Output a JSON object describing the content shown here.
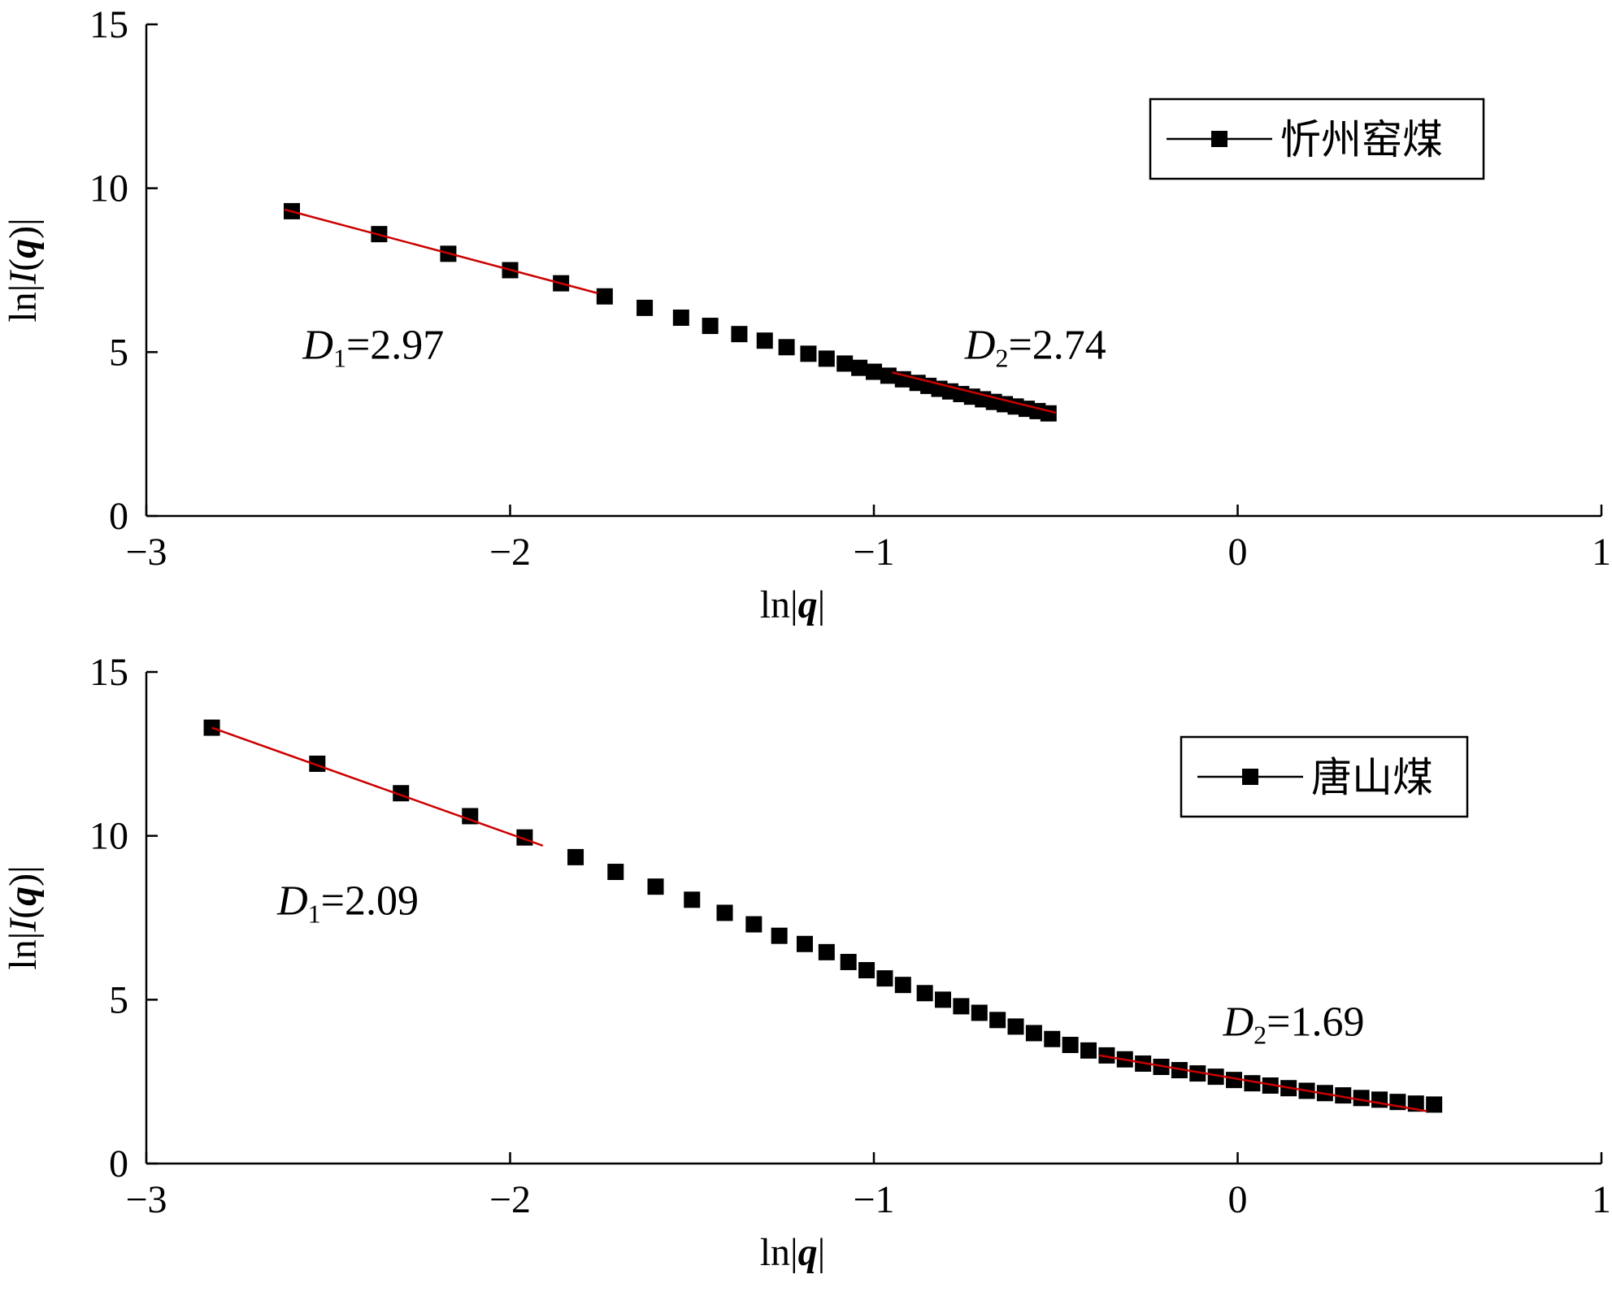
{
  "chart_data": [
    {
      "type": "scatter",
      "xlabel": "ln|q|",
      "ylabel": "ln|I(q)|",
      "xlim": [
        -3,
        1
      ],
      "ylim": [
        0,
        15
      ],
      "xticks": [
        -3,
        -2,
        -1,
        0,
        1
      ],
      "yticks": [
        0,
        5,
        10,
        15
      ],
      "xtick_labels": [
        "−3",
        "−2",
        "−1",
        "0",
        "1"
      ],
      "ytick_labels": [
        "0",
        "5",
        "10",
        "15"
      ],
      "grid": false,
      "legend_position": "top-right",
      "series": [
        {
          "name": "忻州窑煤",
          "marker": "square",
          "color": "#000000",
          "x": [
            -2.6,
            -2.36,
            -2.17,
            -2.0,
            -1.86,
            -1.74,
            -1.63,
            -1.53,
            -1.45,
            -1.37,
            -1.3,
            -1.24,
            -1.18,
            -1.13,
            -1.08,
            -1.04,
            -1.0,
            -0.96,
            -0.92,
            -0.88,
            -0.85,
            -0.82,
            -0.79,
            -0.76,
            -0.73,
            -0.7,
            -0.67,
            -0.64,
            -0.61,
            -0.58,
            -0.55,
            -0.52
          ],
          "y": [
            9.3,
            8.6,
            8.0,
            7.5,
            7.1,
            6.7,
            6.35,
            6.05,
            5.8,
            5.55,
            5.35,
            5.15,
            4.95,
            4.8,
            4.65,
            4.52,
            4.4,
            4.28,
            4.17,
            4.06,
            3.97,
            3.88,
            3.8,
            3.72,
            3.64,
            3.56,
            3.48,
            3.41,
            3.34,
            3.27,
            3.2,
            3.13
          ]
        }
      ],
      "fit_lines": [
        {
          "x": [
            -2.62,
            -1.76
          ],
          "y": [
            9.35,
            6.8
          ],
          "color": "#cc0000"
        },
        {
          "x": [
            -0.95,
            -0.5
          ],
          "y": [
            4.38,
            3.15
          ],
          "color": "#cc0000"
        }
      ],
      "annotations": [
        {
          "symbol": "D",
          "sub": "1",
          "rest": "=2.97",
          "x": -2.57,
          "y": 4.8
        },
        {
          "symbol": "D",
          "sub": "2",
          "rest": "=2.74",
          "x": -0.75,
          "y": 4.8
        }
      ]
    },
    {
      "type": "scatter",
      "xlabel": "ln|q|",
      "ylabel": "ln|I(q)|",
      "xlim": [
        -3,
        1
      ],
      "ylim": [
        0,
        15
      ],
      "xticks": [
        -3,
        -2,
        -1,
        0,
        1
      ],
      "yticks": [
        0,
        5,
        10,
        15
      ],
      "xtick_labels": [
        "−3",
        "−2",
        "−1",
        "0",
        "1"
      ],
      "ytick_labels": [
        "0",
        "5",
        "10",
        "15"
      ],
      "grid": false,
      "legend_position": "top-right",
      "series": [
        {
          "name": "唐山煤",
          "marker": "square",
          "color": "#000000",
          "x": [
            -2.82,
            -2.53,
            -2.3,
            -2.11,
            -1.96,
            -1.82,
            -1.71,
            -1.6,
            -1.5,
            -1.41,
            -1.33,
            -1.26,
            -1.19,
            -1.13,
            -1.07,
            -1.02,
            -0.97,
            -0.92,
            -0.86,
            -0.81,
            -0.76,
            -0.71,
            -0.66,
            -0.61,
            -0.56,
            -0.51,
            -0.46,
            -0.41,
            -0.36,
            -0.31,
            -0.26,
            -0.21,
            -0.16,
            -0.11,
            -0.06,
            -0.01,
            0.04,
            0.09,
            0.14,
            0.19,
            0.24,
            0.29,
            0.34,
            0.39,
            0.44,
            0.49,
            0.54
          ],
          "y": [
            13.3,
            12.2,
            11.3,
            10.6,
            9.95,
            9.35,
            8.9,
            8.45,
            8.05,
            7.65,
            7.3,
            6.95,
            6.7,
            6.45,
            6.15,
            5.9,
            5.65,
            5.45,
            5.2,
            5.0,
            4.8,
            4.6,
            4.38,
            4.18,
            3.98,
            3.8,
            3.62,
            3.45,
            3.3,
            3.18,
            3.05,
            2.95,
            2.85,
            2.75,
            2.65,
            2.55,
            2.45,
            2.38,
            2.3,
            2.22,
            2.15,
            2.08,
            2.0,
            1.95,
            1.88,
            1.83,
            1.8
          ]
        }
      ],
      "fit_lines": [
        {
          "x": [
            -2.82,
            -1.91
          ],
          "y": [
            13.3,
            9.7
          ],
          "color": "#cc0000"
        },
        {
          "x": [
            -0.38,
            0.52
          ],
          "y": [
            3.3,
            1.6
          ],
          "color": "#cc0000"
        }
      ],
      "annotations": [
        {
          "symbol": "D",
          "sub": "1",
          "rest": "=2.09",
          "x": -2.64,
          "y": 7.6
        },
        {
          "symbol": "D",
          "sub": "2",
          "rest": "=1.69",
          "x": -0.04,
          "y": 3.9
        }
      ]
    }
  ]
}
